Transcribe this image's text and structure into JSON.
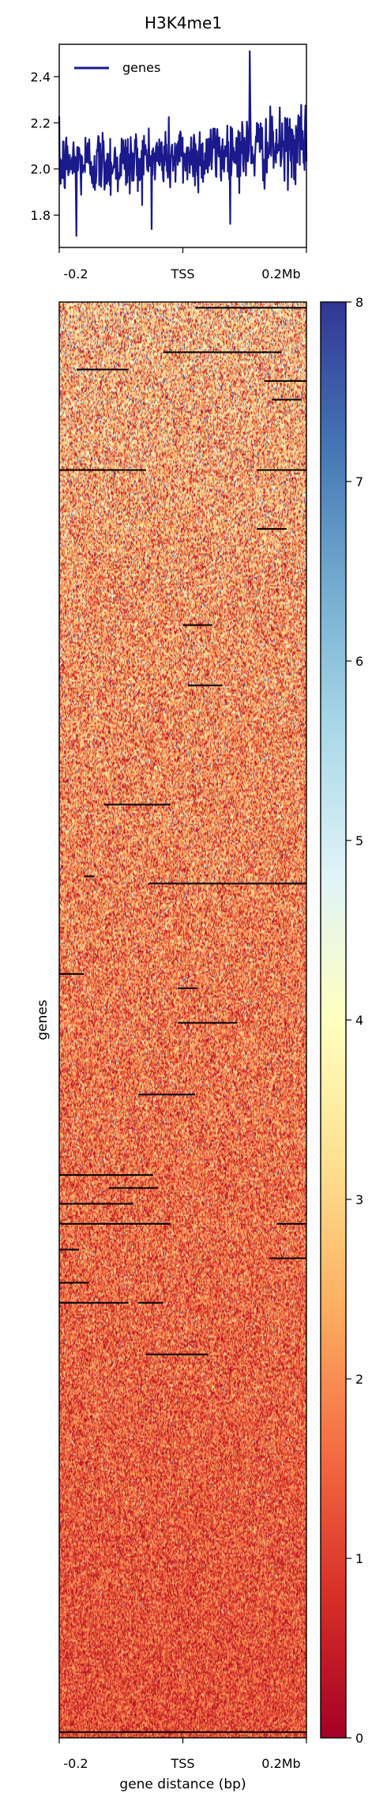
{
  "chart_data": [
    {
      "type": "line",
      "title": "H3K4me1",
      "xlabel": "",
      "ylabel": "",
      "x_tick_labels": [
        "-0.2",
        "TSS",
        "0.2Mb"
      ],
      "y_ticks": [
        1.8,
        2.0,
        2.2,
        2.4
      ],
      "ylim": [
        1.66,
        2.54
      ],
      "series": [
        {
          "name": "genes",
          "color": "#1a1a8c",
          "note": "noisy profile; values are approximate summary envelope",
          "mean_level": [
            2.02,
            2.03,
            2.03,
            2.05,
            2.06,
            2.08,
            2.09,
            2.1
          ],
          "max_value": 2.51,
          "min_value": 1.71
        }
      ],
      "legend": {
        "position": "top-left",
        "entries": [
          "genes"
        ]
      }
    },
    {
      "type": "heatmap",
      "title": "",
      "xlabel": "gene distance (bp)",
      "ylabel": "genes",
      "x_tick_labels": [
        "-0.2",
        "TSS",
        "0.2Mb"
      ],
      "colormap": "RdYlBu",
      "colorbar": {
        "ticks": [
          0,
          1,
          2,
          3,
          4,
          5,
          6,
          7,
          8
        ],
        "range": [
          0,
          8
        ]
      },
      "colors": [
        "#a50026",
        "#d73027",
        "#f46d43",
        "#fdae61",
        "#fee090",
        "#ffffbf",
        "#e0f3f8",
        "#abd9e9",
        "#74add1",
        "#4575b4",
        "#313695"
      ]
    }
  ]
}
